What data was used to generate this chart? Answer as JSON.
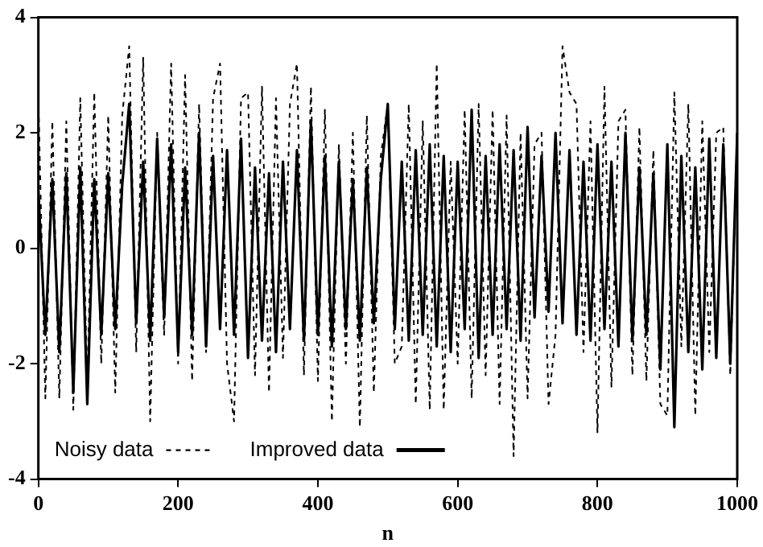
{
  "chart_data": {
    "type": "line",
    "xlabel": "n",
    "legend": "bottom left",
    "marker": "none",
    "x": [
      0,
      10,
      20,
      30,
      40,
      50,
      60,
      70,
      80,
      90,
      100,
      110,
      120,
      130,
      140,
      150,
      160,
      170,
      180,
      190,
      200,
      210,
      220,
      230,
      240,
      250,
      260,
      270,
      280,
      290,
      300,
      310,
      320,
      330,
      340,
      350,
      360,
      370,
      380,
      390,
      400,
      410,
      420,
      430,
      440,
      450,
      460,
      470,
      480,
      490,
      500,
      510,
      520,
      530,
      540,
      550,
      560,
      570,
      580,
      590,
      600,
      610,
      620,
      630,
      640,
      650,
      660,
      670,
      680,
      690,
      700,
      710,
      720,
      730,
      740,
      750,
      760,
      770,
      780,
      790,
      800,
      810,
      820,
      830,
      840,
      850,
      860,
      870,
      880,
      890,
      900,
      910,
      920,
      930,
      940,
      950,
      960,
      970,
      980,
      990,
      1000
    ],
    "xlim": [
      0,
      1000
    ],
    "xticks": [
      0,
      200,
      400,
      600,
      800,
      1000
    ],
    "ylim": [
      -4,
      4
    ],
    "yticks": [
      -4,
      -2,
      0,
      2,
      4
    ],
    "series": [
      {
        "name": "Noisy data",
        "color": "#000000",
        "line_style": "dashed",
        "values": [
          2.6,
          -2.6,
          2.2,
          -2.6,
          2.2,
          -2.8,
          2.6,
          -2.4,
          2.7,
          -2.0,
          2.3,
          -2.5,
          2.3,
          3.5,
          -1.8,
          3.3,
          -3.0,
          2.0,
          -1.5,
          3.2,
          -2.0,
          3.0,
          -2.3,
          2.5,
          -1.8,
          2.6,
          3.2,
          -2.0,
          -3.0,
          2.6,
          2.7,
          -2.2,
          2.8,
          -2.5,
          2.6,
          -1.9,
          2.5,
          3.2,
          -2.2,
          2.8,
          -2.3,
          2.4,
          -3.0,
          1.8,
          -2.0,
          2.0,
          -3.1,
          2.3,
          -2.5,
          1.6,
          2.5,
          -2.0,
          -1.7,
          2.5,
          -2.7,
          2.2,
          -2.8,
          3.2,
          -2.8,
          1.5,
          -2.0,
          2.4,
          -2.6,
          2.5,
          -2.2,
          2.4,
          -2.7,
          2.3,
          -3.6,
          2.0,
          -2.6,
          1.8,
          2.0,
          -2.7,
          -1.5,
          3.5,
          2.7,
          2.5,
          -1.8,
          2.2,
          -3.2,
          2.8,
          -2.4,
          2.2,
          2.4,
          -2.2,
          2.1,
          -2.3,
          1.7,
          -2.7,
          -2.9,
          2.7,
          -1.7,
          2.5,
          -2.9,
          2.2,
          -1.8,
          2.0,
          2.1,
          -2.2,
          2.0
        ]
      },
      {
        "name": "Improved data",
        "color": "#000000",
        "line_style": "solid",
        "values": [
          1.0,
          -1.5,
          1.2,
          -1.8,
          1.3,
          -2.5,
          1.4,
          -2.7,
          1.2,
          -1.5,
          1.3,
          -1.4,
          1.1,
          2.5,
          -1.3,
          1.5,
          -1.6,
          1.9,
          -1.2,
          1.8,
          -1.8,
          1.4,
          -1.5,
          2.0,
          -1.7,
          1.6,
          -1.4,
          1.7,
          -1.5,
          1.9,
          -1.9,
          1.4,
          -1.6,
          1.3,
          -1.8,
          1.5,
          -1.4,
          1.7,
          -1.6,
          2.2,
          -1.5,
          1.6,
          -1.7,
          1.5,
          -1.4,
          1.2,
          -1.6,
          1.4,
          -1.3,
          1.2,
          2.5,
          -1.4,
          1.5,
          -1.6,
          1.7,
          -1.5,
          1.8,
          -1.7,
          1.6,
          -1.8,
          1.5,
          -1.4,
          2.4,
          -1.9,
          1.6,
          -1.5,
          1.8,
          -1.4,
          1.7,
          -1.6,
          2.1,
          -1.2,
          1.6,
          -1.1,
          2.0,
          -1.3,
          1.7,
          -1.5,
          1.5,
          -1.6,
          1.8,
          -1.4,
          1.5,
          -1.7,
          2.0,
          -1.6,
          1.4,
          -1.5,
          1.3,
          -2.1,
          1.8,
          -3.1,
          1.6,
          -1.8,
          1.4,
          -2.1,
          1.9,
          -1.9,
          1.8,
          -2.0,
          2.0
        ]
      }
    ]
  }
}
